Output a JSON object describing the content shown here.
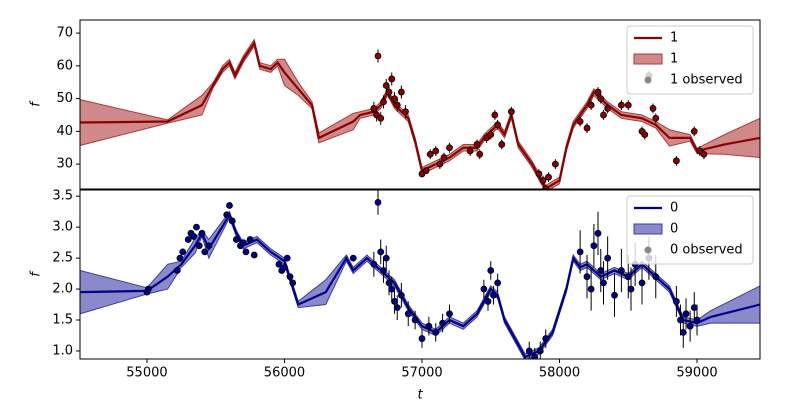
{
  "chart_data": [
    {
      "type": "line",
      "ylabel": "f",
      "legend": "upper right",
      "xlim": [
        54513,
        59458
      ],
      "ylim": [
        22.4,
        74
      ],
      "yticks": [
        30,
        40,
        50,
        60,
        70
      ],
      "x": [
        54513,
        55150,
        55400,
        55480,
        55550,
        55600,
        55640,
        55700,
        55780,
        55820,
        55900,
        55950,
        56000,
        56100,
        56200,
        56250,
        56500,
        56550,
        56650,
        56700,
        56750,
        56800,
        56900,
        56950,
        57000,
        57100,
        57200,
        57300,
        57400,
        57450,
        57500,
        57550,
        57600,
        57650,
        57700,
        57800,
        57900,
        58000,
        58050,
        58100,
        58200,
        58250,
        58350,
        58450,
        58600,
        58700,
        58800,
        58950,
        59000,
        59200,
        59458
      ],
      "series": [
        {
          "name": "1",
          "color": "#8b0000",
          "values": [
            42.7,
            43,
            48,
            54,
            59,
            61,
            57,
            62,
            67,
            60,
            59,
            61,
            58,
            53,
            48,
            38,
            43,
            45,
            46,
            48,
            52,
            48,
            44,
            37,
            28,
            30,
            32,
            35,
            35,
            38,
            40,
            42,
            39,
            45,
            36,
            30,
            22.5,
            25,
            35,
            42,
            48,
            52,
            48,
            45,
            44,
            42,
            38,
            38,
            34,
            36,
            38
          ]
        },
        {
          "name": "1",
          "color": "#b03a3a",
          "upper": [
            49.7,
            43.5,
            51,
            54.8,
            60,
            62,
            58,
            63,
            68,
            61,
            60,
            62,
            62,
            55,
            49,
            39.5,
            45.5,
            46,
            47,
            49,
            53,
            49,
            45,
            38,
            29,
            31,
            33,
            36,
            36,
            39,
            41,
            43,
            40,
            46,
            37,
            31,
            23.5,
            26,
            36,
            43,
            49,
            53,
            49,
            46,
            45,
            43,
            40.5,
            39,
            34.8,
            39,
            44
          ],
          "lower": [
            35.7,
            42.5,
            45,
            53.2,
            58,
            60,
            56,
            61,
            66,
            59,
            58,
            60,
            54,
            51,
            47,
            36.5,
            40.5,
            44,
            45,
            47,
            51,
            47,
            43,
            36,
            27,
            29,
            31,
            34,
            34,
            37,
            39,
            41,
            38,
            44,
            35,
            29,
            21.5,
            24,
            34,
            41,
            47,
            51,
            47,
            44,
            43,
            41,
            35.5,
            37,
            33.2,
            33,
            32
          ]
        },
        {
          "name": "1 observed",
          "color": "#8b0000",
          "x": [
            56650,
            56670,
            56680,
            56700,
            56720,
            56740,
            56760,
            56780,
            56800,
            56820,
            56850,
            56880,
            57000,
            57030,
            57060,
            57100,
            57130,
            57160,
            57200,
            57350,
            57400,
            57420,
            57470,
            57500,
            57530,
            57550,
            57580,
            57650,
            57850,
            57880,
            57900,
            57920,
            57970,
            58150,
            58200,
            58230,
            58280,
            58300,
            58320,
            58350,
            58450,
            58500,
            58600,
            58620,
            58650,
            58680,
            58700,
            58850,
            58980,
            59020,
            59050
          ],
          "values": [
            47,
            45,
            63,
            44,
            49,
            54,
            52,
            56,
            50,
            48,
            52,
            46,
            27,
            28,
            33,
            34,
            30,
            32,
            35,
            34,
            36,
            33,
            38,
            39,
            45,
            42,
            36,
            46,
            27,
            25,
            22.5,
            26,
            30,
            43,
            41,
            48,
            52,
            50,
            45,
            47,
            48,
            48,
            40,
            39,
            57,
            47,
            44,
            31,
            40,
            34,
            33
          ],
          "errors": [
            2,
            2,
            2,
            2,
            2,
            2,
            2,
            2,
            2,
            2,
            2,
            2,
            1,
            1,
            1.5,
            1.5,
            1.5,
            1.5,
            1.5,
            1.5,
            1.5,
            1.5,
            1.5,
            1.5,
            1.5,
            1.5,
            1.5,
            1.5,
            1.5,
            1.5,
            1,
            1.5,
            1.5,
            1.5,
            1.5,
            1.5,
            1.5,
            1.5,
            1.5,
            1.5,
            1.5,
            1.5,
            1.5,
            1.5,
            1.5,
            1.5,
            1.5,
            1.5,
            1.5,
            1.5,
            1.5
          ]
        }
      ]
    },
    {
      "type": "line",
      "ylabel": "f",
      "xlabel": "t",
      "legend": "upper right",
      "xlim": [
        54513,
        59458
      ],
      "ylim": [
        0.87,
        3.6
      ],
      "xticks": [
        55000,
        56000,
        57000,
        58000,
        59000
      ],
      "yticks": [
        {
          "value": 1,
          "label": "1.0"
        },
        1.5,
        {
          "value": 2,
          "label": "2.0"
        },
        2.5,
        {
          "value": 3,
          "label": "3.0"
        },
        3.5
      ],
      "x": [
        54513,
        55000,
        55150,
        55250,
        55350,
        55400,
        55450,
        55600,
        55650,
        55700,
        55800,
        55900,
        56000,
        56050,
        56100,
        56300,
        56450,
        56500,
        56600,
        56700,
        56800,
        56900,
        57000,
        57100,
        57200,
        57300,
        57400,
        57500,
        57550,
        57600,
        57700,
        57750,
        57850,
        57950,
        58050,
        58100,
        58150,
        58200,
        58300,
        58400,
        58500,
        58600,
        58700,
        58800,
        58900,
        59000,
        59100,
        59458
      ],
      "series": [
        {
          "name": "0",
          "color": "#00008b",
          "values": [
            1.95,
            1.97,
            2.2,
            2.4,
            2.7,
            2.9,
            2.65,
            3.2,
            2.9,
            2.7,
            2.8,
            2.6,
            2.45,
            2.1,
            1.75,
            1.95,
            2.5,
            2.3,
            2.5,
            2.3,
            2.1,
            1.7,
            1.4,
            1.3,
            1.5,
            1.4,
            1.6,
            2.0,
            1.9,
            1.5,
            1.1,
            0.9,
            1.0,
            1.3,
            2.0,
            2.5,
            2.35,
            2.4,
            2.2,
            2.3,
            2.2,
            2.4,
            2.2,
            2.0,
            1.5,
            1.45,
            1.55,
            1.75
          ]
        },
        {
          "name": "0",
          "color": "#3c3ca8",
          "upper": [
            2.3,
            2.02,
            2.4,
            2.45,
            2.82,
            2.95,
            2.8,
            3.25,
            2.95,
            2.75,
            2.85,
            2.65,
            2.5,
            2.15,
            1.8,
            2.15,
            2.55,
            2.35,
            2.55,
            2.35,
            2.15,
            1.75,
            1.45,
            1.35,
            1.55,
            1.45,
            1.65,
            2.05,
            1.95,
            1.55,
            1.15,
            0.95,
            1.05,
            1.35,
            2.05,
            2.55,
            2.4,
            2.45,
            2.25,
            2.35,
            2.25,
            2.45,
            2.25,
            2.05,
            1.55,
            1.5,
            1.65,
            2.05
          ],
          "lower": [
            1.6,
            1.92,
            2.0,
            2.35,
            2.58,
            2.85,
            2.5,
            3.15,
            2.85,
            2.65,
            2.75,
            2.55,
            2.4,
            2.05,
            1.7,
            1.75,
            2.45,
            2.25,
            2.45,
            2.25,
            2.05,
            1.65,
            1.35,
            1.25,
            1.45,
            1.35,
            1.55,
            1.95,
            1.85,
            1.45,
            1.05,
            0.85,
            0.95,
            1.25,
            1.95,
            2.45,
            2.3,
            2.35,
            2.15,
            2.25,
            2.15,
            2.35,
            2.15,
            1.95,
            1.45,
            1.4,
            1.45,
            1.45
          ]
        },
        {
          "name": "0 observed",
          "color": "#00008b",
          "x": [
            55000,
            55010,
            55220,
            55240,
            55260,
            55300,
            55320,
            55340,
            55360,
            55380,
            55400,
            55420,
            55450,
            55580,
            55600,
            55620,
            55650,
            55680,
            55700,
            55720,
            55750,
            55780,
            55960,
            55980,
            56000,
            56020,
            56040,
            56060,
            56500,
            56650,
            56680,
            56700,
            56720,
            56740,
            56760,
            56780,
            56800,
            56820,
            56850,
            56900,
            56950,
            57000,
            57050,
            57100,
            57150,
            57200,
            57450,
            57480,
            57500,
            57520,
            57550,
            57780,
            57820,
            57860,
            57900,
            58150,
            58200,
            58230,
            58250,
            58280,
            58300,
            58320,
            58350,
            58400,
            58450,
            58500,
            58520,
            58550,
            58600,
            58650,
            58700,
            58850,
            58880,
            58900,
            58920,
            58950,
            58980,
            59000
          ],
          "values": [
            1.95,
            2.0,
            2.3,
            2.5,
            2.6,
            2.8,
            2.9,
            2.85,
            3.0,
            2.7,
            2.9,
            2.6,
            2.7,
            3.2,
            3.35,
            3.1,
            2.8,
            2.7,
            2.75,
            2.6,
            2.8,
            2.55,
            2.4,
            2.3,
            2.35,
            2.5,
            2.2,
            2.1,
            2.5,
            2.4,
            3.4,
            2.6,
            2.3,
            2.5,
            2.1,
            2.0,
            1.8,
            1.7,
            1.9,
            1.6,
            1.5,
            1.2,
            1.4,
            1.3,
            1.45,
            1.6,
            2.0,
            1.8,
            2.3,
            1.9,
            2.1,
            1.0,
            0.9,
            1.0,
            1.2,
            2.6,
            2.2,
            2.0,
            2.7,
            2.9,
            2.3,
            2.1,
            2.5,
            1.9,
            2.3,
            2.2,
            2.0,
            2.4,
            2.1,
            2.5,
            2.2,
            1.8,
            1.5,
            1.3,
            1.6,
            1.4,
            1.7,
            1.5
          ],
          "errors": [
            0.05,
            0.05,
            0.05,
            0.05,
            0.05,
            0.05,
            0.05,
            0.05,
            0.05,
            0.05,
            0.05,
            0.05,
            0.05,
            0.05,
            0.05,
            0.05,
            0.05,
            0.05,
            0.05,
            0.05,
            0.05,
            0.05,
            0.05,
            0.05,
            0.05,
            0.05,
            0.05,
            0.05,
            0.05,
            0.2,
            0.2,
            0.2,
            0.2,
            0.2,
            0.2,
            0.2,
            0.2,
            0.2,
            0.2,
            0.2,
            0.15,
            0.15,
            0.15,
            0.15,
            0.15,
            0.15,
            0.15,
            0.15,
            0.15,
            0.15,
            0.15,
            0.15,
            0.15,
            0.15,
            0.15,
            0.35,
            0.35,
            0.35,
            0.35,
            0.35,
            0.35,
            0.35,
            0.35,
            0.35,
            0.35,
            0.35,
            0.35,
            0.35,
            0.35,
            0.35,
            0.35,
            0.25,
            0.25,
            0.25,
            0.25,
            0.25,
            0.25,
            0.25
          ]
        }
      ]
    }
  ]
}
